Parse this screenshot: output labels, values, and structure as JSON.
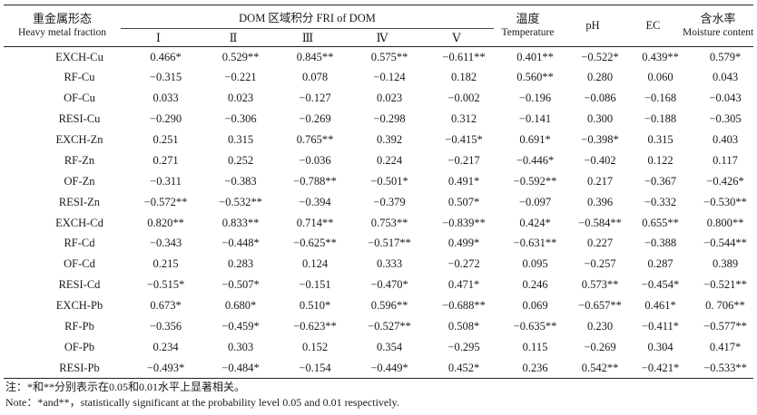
{
  "table": {
    "header": {
      "fraction_zh": "重金属形态",
      "fraction_en": "Heavy metal fraction",
      "dom_group": "DOM 区域积分 FRI of DOM",
      "dom_cols": [
        "Ⅰ",
        "Ⅱ",
        "Ⅲ",
        "Ⅳ",
        "Ⅴ"
      ],
      "temp_zh": "温度",
      "temp_en": "Temperature",
      "ph": "pH",
      "ec": "EC",
      "moist_zh": "含水率",
      "moist_en": "Moisture content"
    },
    "rows": [
      {
        "fraction": "EXCH-Cu",
        "values": [
          "0.466*",
          "0.529**",
          "0.845**",
          "0.575**",
          "−0.611**",
          "0.401**",
          "−0.522*",
          "0.439**",
          "0.579*"
        ]
      },
      {
        "fraction": "RF-Cu",
        "values": [
          "−0.315",
          "−0.221",
          "0.078",
          "−0.124",
          "0.182",
          "0.560**",
          "0.280",
          "0.060",
          "0.043"
        ]
      },
      {
        "fraction": "OF-Cu",
        "values": [
          "0.033",
          "0.023",
          "−0.127",
          "0.023",
          "−0.002",
          "−0.196",
          "−0.086",
          "−0.168",
          "−0.043"
        ]
      },
      {
        "fraction": "RESI-Cu",
        "values": [
          "−0.290",
          "−0.306",
          "−0.269",
          "−0.298",
          "0.312",
          "−0.141",
          "0.300",
          "−0.188",
          "−0.305"
        ]
      },
      {
        "fraction": "EXCH-Zn",
        "values": [
          "0.251",
          "0.315",
          "0.765**",
          "0.392",
          "−0.415*",
          "0.691*",
          "−0.398*",
          "0.315",
          "0.403"
        ]
      },
      {
        "fraction": "RF-Zn",
        "values": [
          "0.271",
          "0.252",
          "−0.036",
          "0.224",
          "−0.217",
          "−0.446*",
          "−0.402",
          "0.122",
          "0.117"
        ]
      },
      {
        "fraction": "OF-Zn",
        "values": [
          "−0.311",
          "−0.383",
          "−0.788**",
          "−0.501*",
          "0.491*",
          "−0.592**",
          "0.217",
          "−0.367",
          "−0.426*"
        ]
      },
      {
        "fraction": "RESI-Zn",
        "values": [
          "−0.572**",
          "−0.532**",
          "−0.394",
          "−0.379",
          "0.507*",
          "−0.097",
          "0.396",
          "−0.332",
          "−0.530**"
        ]
      },
      {
        "fraction": "EXCH-Cd",
        "values": [
          "0.820**",
          "0.833**",
          "0.714**",
          "0.753**",
          "−0.839**",
          "0.424*",
          "−0.584**",
          "0.655**",
          "0.800**"
        ]
      },
      {
        "fraction": "RF-Cd",
        "values": [
          "−0.343",
          "−0.448*",
          "−0.625**",
          "−0.517**",
          "0.499*",
          "−0.631**",
          "0.227",
          "−0.388",
          "−0.544**"
        ]
      },
      {
        "fraction": "OF-Cd",
        "values": [
          "0.215",
          "0.283",
          "0.124",
          "0.333",
          "−0.272",
          "0.095",
          "−0.257",
          "0.287",
          "0.389"
        ]
      },
      {
        "fraction": "RESI-Cd",
        "values": [
          "−0.515*",
          "−0.507*",
          "−0.151",
          "−0.470*",
          "0.471*",
          "0.246",
          "0.573**",
          "−0.454*",
          "−0.521**"
        ]
      },
      {
        "fraction": "EXCH-Pb",
        "values": [
          "0.673*",
          "0.680*",
          "0.510*",
          "0.596**",
          "−0.688**",
          "0.069",
          "−0.657**",
          "0.461*",
          "0. 706**"
        ]
      },
      {
        "fraction": "RF-Pb",
        "values": [
          "−0.356",
          "−0.459*",
          "−0.623**",
          "−0.527**",
          "0.508*",
          "−0.635**",
          "0.230",
          "−0.411*",
          "−0.577**"
        ]
      },
      {
        "fraction": "OF-Pb",
        "values": [
          "0.234",
          "0.303",
          "0.152",
          "0.354",
          "−0.295",
          "0.115",
          "−0.269",
          "0.304",
          "0.417*"
        ]
      },
      {
        "fraction": "RESI-Pb",
        "values": [
          "−0.493*",
          "−0.484*",
          "−0.154",
          "−0.449*",
          "0.452*",
          "0.236",
          "0.542**",
          "−0.421*",
          "−0.533**"
        ]
      }
    ]
  },
  "notes": {
    "zh": "注：*和**分别表示在0.05和0.01水平上显著相关。",
    "en": "Note：*and**，statistically significant at the probability level 0.05 and 0.01 respectively."
  }
}
